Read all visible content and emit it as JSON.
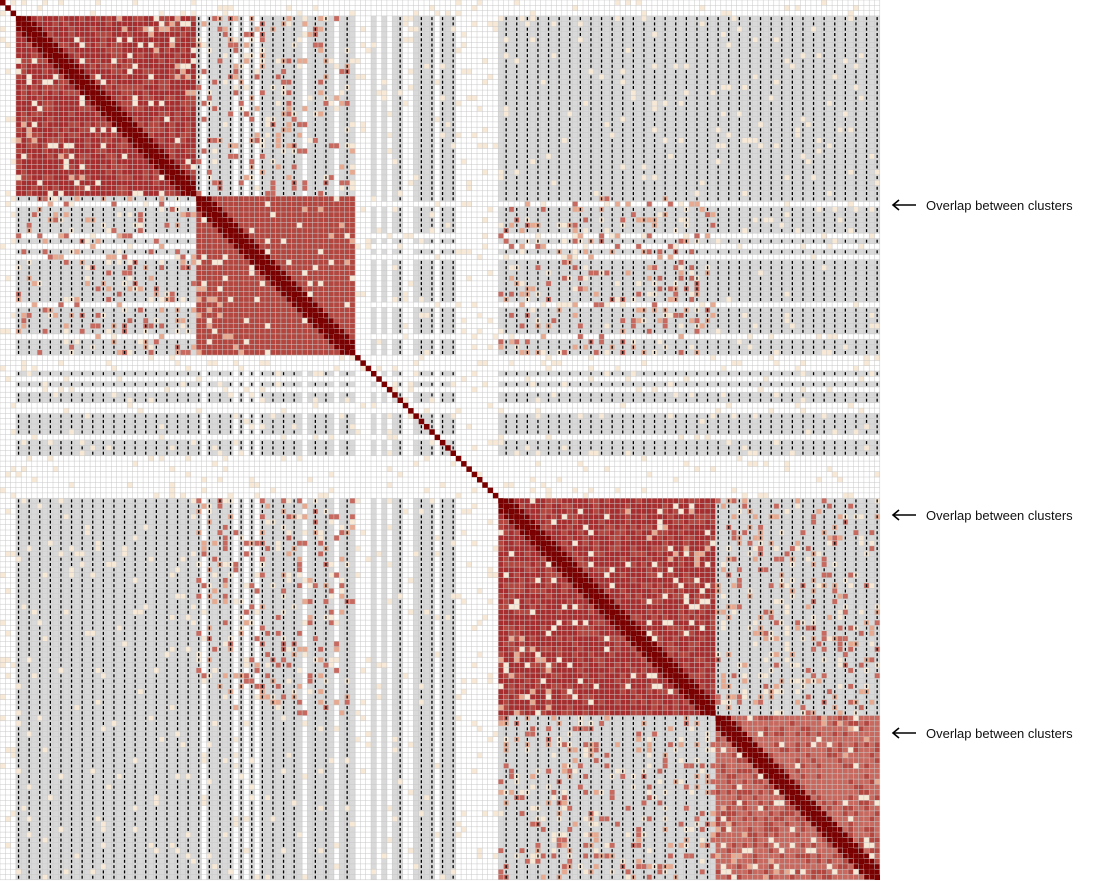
{
  "chart_data": {
    "type": "heatmap",
    "title": "",
    "xlabel": "",
    "ylabel": "",
    "grid": true,
    "n": 166,
    "colors": {
      "diagonal": "#7a0000",
      "high": "#a72e2e",
      "medium_high": "#b3463f",
      "medium": "#c8695f",
      "low": "#e7aa91",
      "very_low": "#f8e9d6",
      "missing": "#d9d9d9",
      "empty": "#ffffff",
      "grid": "#c8c8c8",
      "marker": "#000000"
    },
    "clusters": [
      {
        "rows": [
          3,
          37
        ],
        "level": "high"
      },
      {
        "rows": [
          37,
          67
        ],
        "level": "medium_high"
      },
      {
        "rows": [
          94,
          135
        ],
        "level": "high"
      },
      {
        "rows": [
          135,
          166
        ],
        "level": "medium"
      }
    ],
    "annotations": [
      {
        "text": "Overlap between clusters",
        "row": 37
      },
      {
        "text": "Overlap between clusters",
        "row": 94
      },
      {
        "text": "Overlap between clusters",
        "row": 135
      }
    ]
  }
}
